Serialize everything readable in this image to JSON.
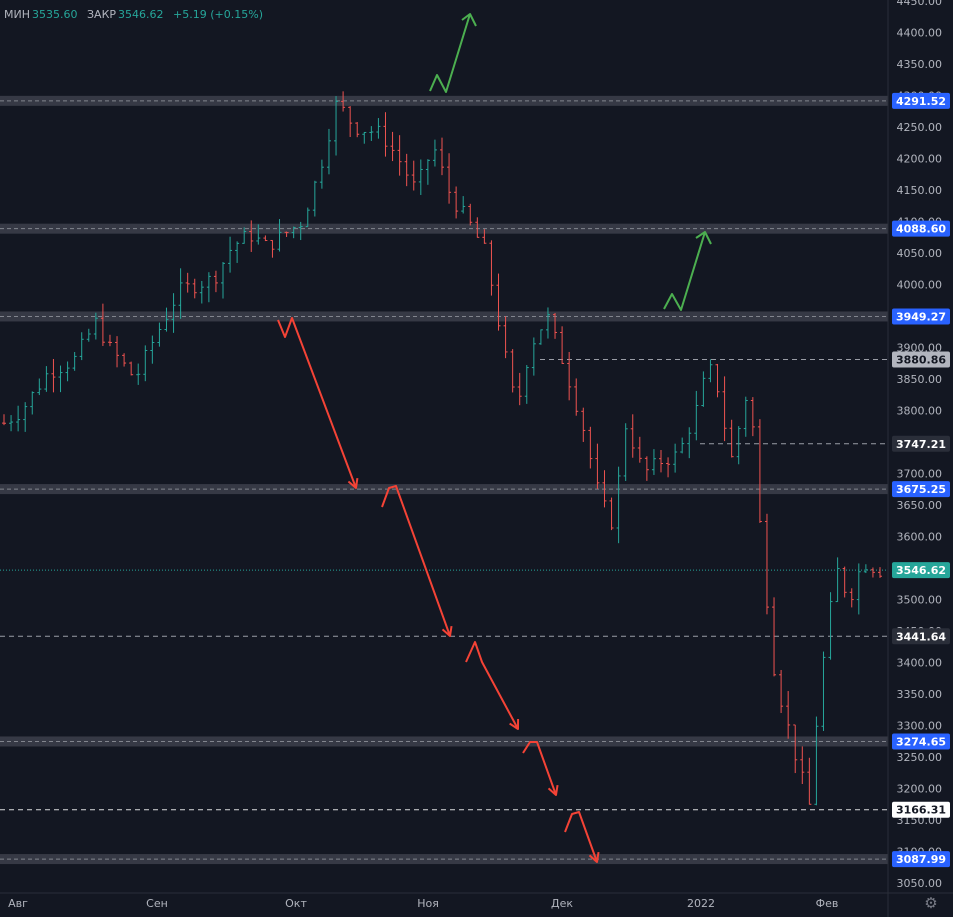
{
  "legend": {
    "low_label": "МИН",
    "low_value": "3535.60",
    "close_label": "ЗАКР",
    "close_value": "3546.62",
    "change": "+5.19 (+0.15%)"
  },
  "colors": {
    "background": "#131722",
    "up": "#26a69a",
    "down": "#ef5350",
    "level_band": "#434651",
    "blue_label": "#2962ff",
    "arrow_red": "#f44336",
    "arrow_green": "#4caf50",
    "grid_text": "#b2b5be"
  },
  "chart_data": {
    "type": "ohlc",
    "title": "",
    "xlabel": "",
    "ylabel": "",
    "ylim": [
      3050,
      4450
    ],
    "grid": false,
    "y_ticks": [
      "3050.00",
      "3100.00",
      "3150.00",
      "3200.00",
      "3250.00",
      "3300.00",
      "3350.00",
      "3400.00",
      "3450.00",
      "3500.00",
      "3550.00",
      "3600.00",
      "3650.00",
      "3700.00",
      "3750.00",
      "3800.00",
      "3850.00",
      "3900.00",
      "3950.00",
      "4000.00",
      "4050.00",
      "4100.00",
      "4150.00",
      "4200.00",
      "4250.00",
      "4300.00",
      "4350.00",
      "4400.00",
      "4450.00"
    ],
    "x_ticks": [
      "Авг",
      "Сен",
      "Окт",
      "Ноя",
      "Дек",
      "2022",
      "Фев"
    ],
    "last_price": "3546.62",
    "horizontal_levels": [
      {
        "label": "4291.52",
        "value": 4291.52,
        "style": "band",
        "label_color": "blue"
      },
      {
        "label": "4088.60",
        "value": 4088.6,
        "style": "band",
        "label_color": "blue"
      },
      {
        "label": "3949.27",
        "value": 3949.27,
        "style": "band",
        "label_color": "blue"
      },
      {
        "label": "3880.86",
        "value": 3880.86,
        "style": "dashed",
        "label_color": "gray"
      },
      {
        "label": "3747.21",
        "value": 3747.21,
        "style": "dashed",
        "label_color": "dark"
      },
      {
        "label": "3675.25",
        "value": 3675.25,
        "style": "band",
        "label_color": "blue"
      },
      {
        "label": "3441.64",
        "value": 3441.64,
        "style": "dashed",
        "label_color": "dark"
      },
      {
        "label": "3274.65",
        "value": 3274.65,
        "style": "band",
        "label_color": "blue"
      },
      {
        "label": "3166.31",
        "value": 3166.31,
        "style": "dashed",
        "label_color": "white"
      },
      {
        "label": "3087.99",
        "value": 3087.99,
        "style": "band",
        "label_color": "blue"
      }
    ],
    "price_path_t": [
      0,
      0.02,
      0.05,
      0.08,
      0.105,
      0.12,
      0.15,
      0.17,
      0.2,
      0.22,
      0.24,
      0.26,
      0.28,
      0.3,
      0.32,
      0.34,
      0.36,
      0.38,
      0.4,
      0.43,
      0.45,
      0.47,
      0.49,
      0.51,
      0.53,
      0.55,
      0.57,
      0.585,
      0.6,
      0.62,
      0.64,
      0.66,
      0.68,
      0.695,
      0.71,
      0.73,
      0.75,
      0.77,
      0.79,
      0.8,
      0.81,
      0.83,
      0.85,
      0.855,
      0.865,
      0.88,
      0.9,
      0.92,
      0.93,
      0.95,
      0.965,
      0.98,
      1.0
    ],
    "price_path_v": [
      3780,
      3800,
      3860,
      3880,
      3940,
      3900,
      3850,
      3910,
      3990,
      4000,
      4010,
      4060,
      4080,
      4060,
      4080,
      4100,
      4180,
      4290,
      4250,
      4240,
      4200,
      4150,
      4220,
      4140,
      4100,
      4050,
      3900,
      3800,
      3900,
      3950,
      3870,
      3780,
      3660,
      3620,
      3780,
      3700,
      3720,
      3730,
      3800,
      3850,
      3870,
      3720,
      3840,
      3770,
      3580,
      3380,
      3270,
      3170,
      3350,
      3550,
      3500,
      3560,
      3546.62
    ],
    "candles_count": 125,
    "candles_range": [
      "Авг 2021",
      "Фев 2022"
    ]
  }
}
